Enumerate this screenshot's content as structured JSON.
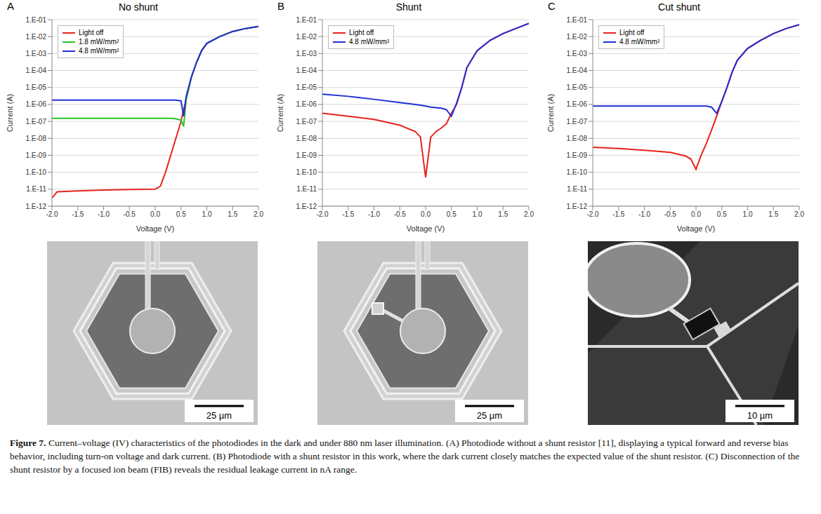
{
  "chart_data": [
    {
      "type": "line",
      "panel": "A",
      "title": "No shunt",
      "x_label": "Voltage (V)",
      "y_label": "Current (A)",
      "log": "y",
      "grid": true,
      "legend": "upper left",
      "xlim": [
        -2,
        2
      ],
      "ylim": [
        1e-12,
        0.1
      ],
      "xticks": [
        {
          "value": -2,
          "label": "-2.0"
        },
        {
          "value": -1.5,
          "label": "-1.5"
        },
        {
          "value": -1,
          "label": "-1.0"
        },
        {
          "value": -0.5,
          "label": "-0.5"
        },
        {
          "value": 0,
          "label": "0.0"
        },
        {
          "value": 0.5,
          "label": "0.5"
        },
        {
          "value": 1,
          "label": "1.0"
        },
        {
          "value": 1.5,
          "label": "1.5"
        },
        {
          "value": 2,
          "label": "2.0"
        }
      ],
      "yticks": [
        {
          "value": 1e-12,
          "label": "1.E-12"
        },
        {
          "value": 1e-11,
          "label": "1.E-11"
        },
        {
          "value": 1e-10,
          "label": "1.E-10"
        },
        {
          "value": 1e-09,
          "label": "1.E-09"
        },
        {
          "value": 1e-08,
          "label": "1.E-08"
        },
        {
          "value": 1e-07,
          "label": "1.E-07"
        },
        {
          "value": 1e-06,
          "label": "1.E-06"
        },
        {
          "value": 1e-05,
          "label": "1.E-05"
        },
        {
          "value": 0.0001,
          "label": "1.E-04"
        },
        {
          "value": 0.001,
          "label": "1.E-03"
        },
        {
          "value": 0.01,
          "label": "1.E-02"
        },
        {
          "value": 0.1,
          "label": "1.E-01"
        }
      ],
      "x": [
        -2.0,
        -1.9,
        -1.5,
        -1.0,
        -0.5,
        0,
        0.1,
        0.2,
        0.3,
        0.4,
        0.5,
        0.55,
        0.6,
        0.7,
        0.8,
        0.9,
        1.0,
        1.25,
        1.5,
        1.75,
        2.0
      ],
      "series": [
        {
          "name": "Light off",
          "color": "#e8221c",
          "values": [
            3e-12,
            7e-12,
            8e-12,
            9e-12,
            9.5e-12,
            1e-11,
            1.5e-11,
            1e-10,
            1e-09,
            1e-08,
            1e-07,
            5e-07,
            2e-06,
            4e-05,
            0.0003,
            0.0015,
            0.004,
            0.01,
            0.02,
            0.03,
            0.04
          ]
        },
        {
          "name": "1.8 mW/mm²",
          "color": "#27c427",
          "values": [
            1.5e-07,
            1.5e-07,
            1.5e-07,
            1.5e-07,
            1.5e-07,
            1.5e-07,
            1.5e-07,
            1.5e-07,
            1.5e-07,
            1.4e-07,
            1.2e-07,
            5e-08,
            2e-06,
            4e-05,
            0.0003,
            0.0015,
            0.004,
            0.01,
            0.02,
            0.03,
            0.04
          ]
        },
        {
          "name": "4.8 mW/mm²",
          "color": "#1f2fd6",
          "values": [
            1.8e-06,
            1.8e-06,
            1.8e-06,
            1.8e-06,
            1.8e-06,
            1.8e-06,
            1.8e-06,
            1.8e-06,
            1.8e-06,
            1.8e-06,
            1.6e-06,
            2e-07,
            3e-06,
            4e-05,
            0.0003,
            0.0015,
            0.004,
            0.01,
            0.02,
            0.03,
            0.04
          ]
        }
      ]
    },
    {
      "type": "line",
      "panel": "B",
      "title": "Shunt",
      "x_label": "Voltage (V)",
      "y_label": "Current (A)",
      "log": "y",
      "grid": true,
      "legend": "upper left",
      "xlim": [
        -2,
        2
      ],
      "ylim": [
        1e-12,
        0.1
      ],
      "xticks": [
        {
          "value": -2,
          "label": "-2.0"
        },
        {
          "value": -1.5,
          "label": "-1.5"
        },
        {
          "value": -1,
          "label": "-1.0"
        },
        {
          "value": -0.5,
          "label": "-0.5"
        },
        {
          "value": 0,
          "label": "0.0"
        },
        {
          "value": 0.5,
          "label": "0.5"
        },
        {
          "value": 1,
          "label": "1.0"
        },
        {
          "value": 1.5,
          "label": "1.5"
        },
        {
          "value": 2,
          "label": "2.0"
        }
      ],
      "yticks": [
        {
          "value": 1e-12,
          "label": "1.E-12"
        },
        {
          "value": 1e-11,
          "label": "1.E-11"
        },
        {
          "value": 1e-10,
          "label": "1.E-10"
        },
        {
          "value": 1e-09,
          "label": "1.E-09"
        },
        {
          "value": 1e-08,
          "label": "1.E-08"
        },
        {
          "value": 1e-07,
          "label": "1.E-07"
        },
        {
          "value": 1e-06,
          "label": "1.E-06"
        },
        {
          "value": 1e-05,
          "label": "1.E-05"
        },
        {
          "value": 0.0001,
          "label": "1.E-04"
        },
        {
          "value": 0.001,
          "label": "1.E-03"
        },
        {
          "value": 0.01,
          "label": "1.E-02"
        },
        {
          "value": 0.1,
          "label": "1.E-01"
        }
      ],
      "x": [
        -2.0,
        -1.5,
        -1.0,
        -0.5,
        -0.2,
        -0.1,
        0,
        0.1,
        0.2,
        0.3,
        0.4,
        0.5,
        0.6,
        0.7,
        0.8,
        1.0,
        1.25,
        1.5,
        1.75,
        2.0
      ],
      "series": [
        {
          "name": "Light off",
          "color": "#e8221c",
          "values": [
            3e-07,
            2e-07,
            1.3e-07,
            6e-08,
            2.5e-08,
            1.2e-08,
            5e-11,
            1.2e-08,
            2.5e-08,
            4e-08,
            7e-08,
            3e-07,
            1e-06,
            1e-05,
            0.00015,
            0.0015,
            0.006,
            0.015,
            0.03,
            0.06
          ]
        },
        {
          "name": "4.8 mW/mm²",
          "color": "#1f2fd6",
          "values": [
            4e-06,
            3e-06,
            2e-06,
            1.3e-06,
            1e-06,
            9e-07,
            8e-07,
            7e-07,
            6.5e-07,
            6e-07,
            5e-07,
            2e-07,
            1.2e-06,
            1e-05,
            0.00015,
            0.0015,
            0.006,
            0.015,
            0.03,
            0.06
          ]
        }
      ]
    },
    {
      "type": "line",
      "panel": "C",
      "title": "Cut shunt",
      "x_label": "Voltage (V)",
      "y_label": "Current (A)",
      "log": "y",
      "grid": true,
      "legend": "upper left",
      "xlim": [
        -2,
        2
      ],
      "ylim": [
        1e-12,
        0.1
      ],
      "xticks": [
        {
          "value": -2,
          "label": "-2.0"
        },
        {
          "value": -1.5,
          "label": "-1.5"
        },
        {
          "value": -1,
          "label": "-1.0"
        },
        {
          "value": -0.5,
          "label": "-0.5"
        },
        {
          "value": 0,
          "label": "0.0"
        },
        {
          "value": 0.5,
          "label": "0.5"
        },
        {
          "value": 1,
          "label": "1.0"
        },
        {
          "value": 1.5,
          "label": "1.5"
        },
        {
          "value": 2,
          "label": "2.0"
        }
      ],
      "yticks": [
        {
          "value": 1e-12,
          "label": "1.E-12"
        },
        {
          "value": 1e-11,
          "label": "1.E-11"
        },
        {
          "value": 1e-10,
          "label": "1.E-10"
        },
        {
          "value": 1e-09,
          "label": "1.E-09"
        },
        {
          "value": 1e-08,
          "label": "1.E-08"
        },
        {
          "value": 1e-07,
          "label": "1.E-07"
        },
        {
          "value": 1e-06,
          "label": "1.E-06"
        },
        {
          "value": 1e-05,
          "label": "1.E-05"
        },
        {
          "value": 0.0001,
          "label": "1.E-04"
        },
        {
          "value": 0.001,
          "label": "1.E-03"
        },
        {
          "value": 0.01,
          "label": "1.E-02"
        },
        {
          "value": 0.1,
          "label": "1.E-01"
        }
      ],
      "x": [
        -2.0,
        -1.5,
        -1.0,
        -0.5,
        -0.2,
        -0.1,
        0,
        0.1,
        0.2,
        0.3,
        0.4,
        0.5,
        0.6,
        0.7,
        0.8,
        1.0,
        1.25,
        1.5,
        1.75,
        2.0
      ],
      "series": [
        {
          "name": "Light off",
          "color": "#e8221c",
          "values": [
            3e-09,
            2.5e-09,
            2e-09,
            1.5e-09,
            9e-10,
            6e-10,
            1.5e-10,
            1e-09,
            5e-09,
            3e-08,
            2e-07,
            1.5e-06,
            1e-05,
            8e-05,
            0.0004,
            0.002,
            0.006,
            0.015,
            0.03,
            0.05
          ]
        },
        {
          "name": "4.8 mW/mm²",
          "color": "#1f2fd6",
          "values": [
            8e-07,
            8e-07,
            8e-07,
            8e-07,
            8e-07,
            8e-07,
            8e-07,
            8e-07,
            8e-07,
            7e-07,
            3e-07,
            1.5e-06,
            1e-05,
            8e-05,
            0.0004,
            0.002,
            0.006,
            0.015,
            0.03,
            0.05
          ]
        }
      ]
    }
  ],
  "images": [
    {
      "scale_bar": "25 µm"
    },
    {
      "scale_bar": "25 µm"
    },
    {
      "scale_bar": "10 µm"
    }
  ],
  "caption": {
    "label": "Figure 7.",
    "text": "Current–voltage (IV) characteristics of the photodiodes in the dark and under 880 nm laser illumination. (A) Photodiode without a shunt resistor [11], displaying a typical forward and reverse bias behavior, including turn-on voltage and dark current. (B) Photodiode with a shunt resistor in this work, where the dark current closely matches the expected value of the shunt resistor. (C) Disconnection of the shunt resistor by a focused ion beam (FIB) reveals the residual leakage current in nA range."
  }
}
